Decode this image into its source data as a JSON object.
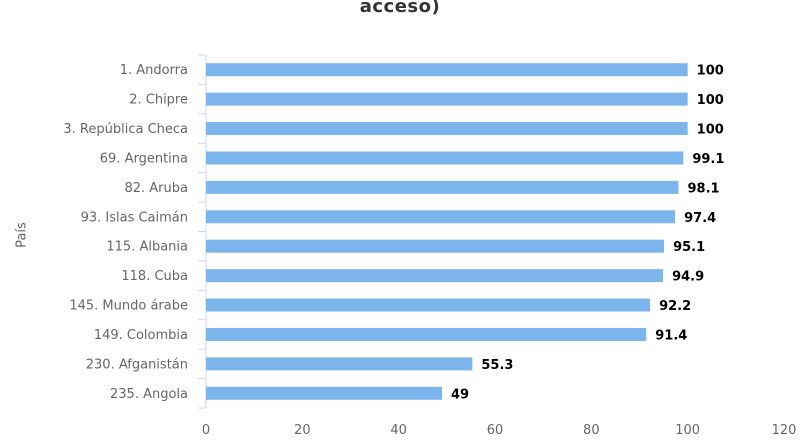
{
  "chart_data": {
    "type": "bar",
    "orientation": "horizontal",
    "title": "acceso)",
    "ylabel": "País",
    "xlabel": "",
    "xlim": [
      0,
      120
    ],
    "x_ticks": [
      0,
      20,
      40,
      60,
      80,
      100,
      120
    ],
    "grid": false,
    "bar_color": "#7cb5ec",
    "categories": [
      "1. Andorra",
      "2. Chipre",
      "3. República Checa",
      "69. Argentina",
      "82. Aruba",
      "93. Islas Caimán",
      "115. Albania",
      "118. Cuba",
      "145. Mundo árabe",
      "149. Colombia",
      "230. Afganistán",
      "235. Angola"
    ],
    "values": [
      100,
      100,
      100,
      99.1,
      98.1,
      97.4,
      95.1,
      94.9,
      92.2,
      91.4,
      55.3,
      49
    ],
    "data_labels": [
      "100",
      "100",
      "100",
      "99.1",
      "98.1",
      "97.4",
      "95.1",
      "94.9",
      "92.2",
      "91.4",
      "55.3",
      "49"
    ]
  }
}
